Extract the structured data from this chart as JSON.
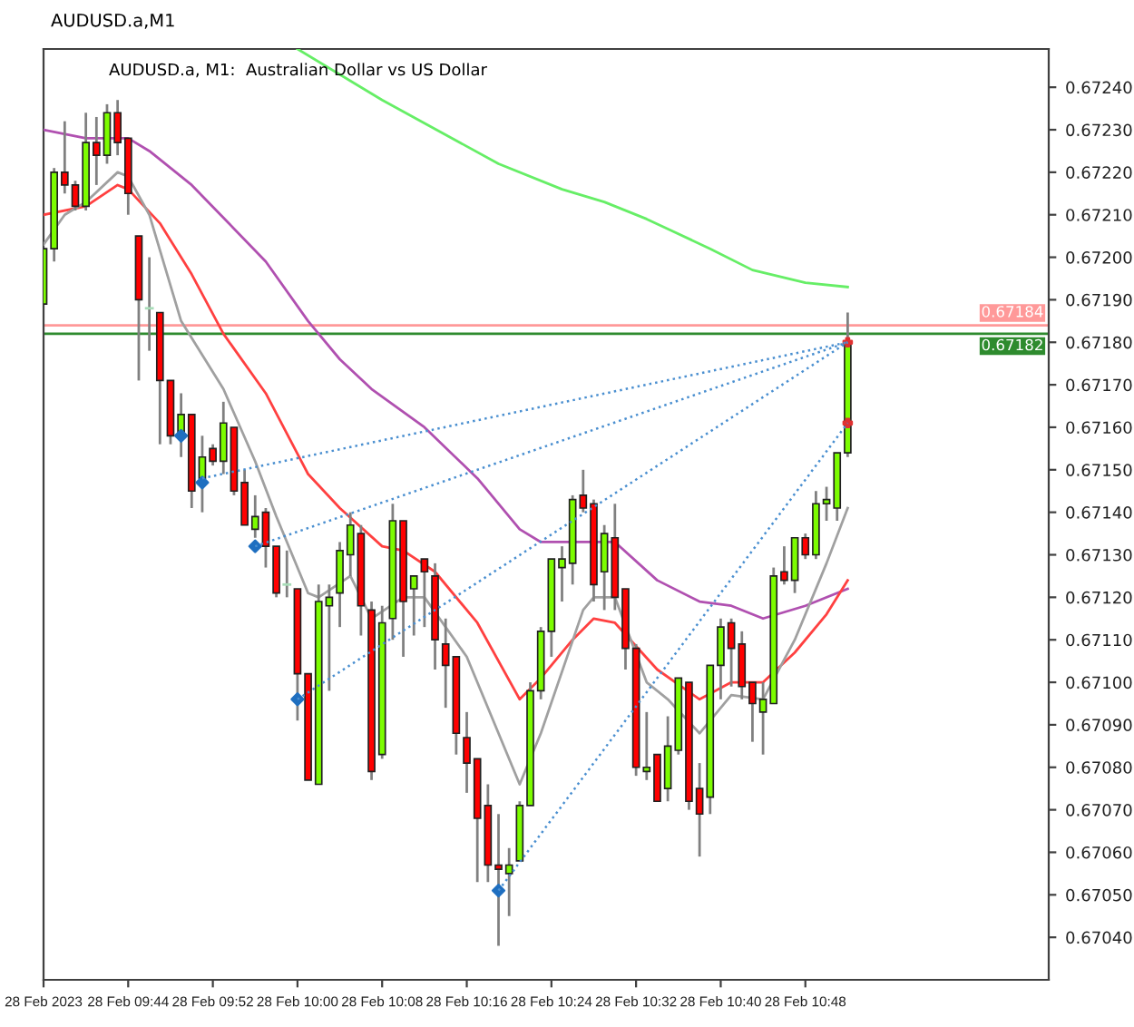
{
  "chart_data": {
    "type": "candlestick",
    "title": "AUDUSD.a,M1",
    "subtitle": "AUDUSD.a, M1:  Australian Dollar vs US Dollar",
    "x": [
      "2023-02-28T09:36",
      "2023-02-28T09:37",
      "2023-02-28T09:38",
      "2023-02-28T09:39",
      "2023-02-28T09:40",
      "2023-02-28T09:41",
      "2023-02-28T09:42",
      "2023-02-28T09:43",
      "2023-02-28T09:44",
      "2023-02-28T09:45",
      "2023-02-28T09:46",
      "2023-02-28T09:47",
      "2023-02-28T09:48",
      "2023-02-28T09:49",
      "2023-02-28T09:50",
      "2023-02-28T09:51",
      "2023-02-28T09:52",
      "2023-02-28T09:53",
      "2023-02-28T09:54",
      "2023-02-28T09:55",
      "2023-02-28T09:56",
      "2023-02-28T09:57",
      "2023-02-28T09:58",
      "2023-02-28T09:59",
      "2023-02-28T10:00",
      "2023-02-28T10:01",
      "2023-02-28T10:02",
      "2023-02-28T10:03",
      "2023-02-28T10:04",
      "2023-02-28T10:05",
      "2023-02-28T10:06",
      "2023-02-28T10:07",
      "2023-02-28T10:08",
      "2023-02-28T10:09",
      "2023-02-28T10:10",
      "2023-02-28T10:11",
      "2023-02-28T10:12",
      "2023-02-28T10:13",
      "2023-02-28T10:14",
      "2023-02-28T10:15",
      "2023-02-28T10:16",
      "2023-02-28T10:17",
      "2023-02-28T10:18",
      "2023-02-28T10:19",
      "2023-02-28T10:20",
      "2023-02-28T10:21",
      "2023-02-28T10:22",
      "2023-02-28T10:23",
      "2023-02-28T10:24",
      "2023-02-28T10:25",
      "2023-02-28T10:26",
      "2023-02-28T10:27",
      "2023-02-28T10:28",
      "2023-02-28T10:29",
      "2023-02-28T10:30",
      "2023-02-28T10:31",
      "2023-02-28T10:32",
      "2023-02-28T10:33",
      "2023-02-28T10:34",
      "2023-02-28T10:35",
      "2023-02-28T10:36",
      "2023-02-28T10:37",
      "2023-02-28T10:38",
      "2023-02-28T10:39",
      "2023-02-28T10:40",
      "2023-02-28T10:41",
      "2023-02-28T10:42",
      "2023-02-28T10:43",
      "2023-02-28T10:44",
      "2023-02-28T10:45",
      "2023-02-28T10:46",
      "2023-02-28T10:47",
      "2023-02-28T10:48",
      "2023-02-28T10:49",
      "2023-02-28T10:50",
      "2023-02-28T10:51",
      "2023-02-28T10:52"
    ],
    "ohlc": [
      [
        0.67189,
        0.67202,
        0.67189,
        0.67202
      ],
      [
        0.67202,
        0.67221,
        0.67199,
        0.6722
      ],
      [
        0.6722,
        0.67232,
        0.67215,
        0.67217
      ],
      [
        0.67217,
        0.67218,
        0.67211,
        0.67212
      ],
      [
        0.67212,
        0.67234,
        0.67211,
        0.67227
      ],
      [
        0.67227,
        0.67233,
        0.67217,
        0.67224
      ],
      [
        0.67224,
        0.67236,
        0.67222,
        0.67234
      ],
      [
        0.67234,
        0.67237,
        0.67224,
        0.67227
      ],
      [
        0.67228,
        0.67228,
        0.6721,
        0.67215
      ],
      [
        0.67205,
        0.67205,
        0.67171,
        0.6719
      ],
      [
        0.67188,
        0.672,
        0.67178,
        0.67188
      ],
      [
        0.67187,
        0.67187,
        0.67156,
        0.67171
      ],
      [
        0.67171,
        0.67171,
        0.67156,
        0.67158
      ],
      [
        0.67158,
        0.67168,
        0.67153,
        0.67163
      ],
      [
        0.67163,
        0.67163,
        0.67141,
        0.67145
      ],
      [
        0.67148,
        0.67158,
        0.6714,
        0.67153
      ],
      [
        0.67155,
        0.67156,
        0.67151,
        0.67152
      ],
      [
        0.67152,
        0.67166,
        0.67149,
        0.67161
      ],
      [
        0.6716,
        0.6716,
        0.67144,
        0.67145
      ],
      [
        0.67147,
        0.6715,
        0.67137,
        0.67137
      ],
      [
        0.67136,
        0.67144,
        0.67134,
        0.67139
      ],
      [
        0.6714,
        0.67141,
        0.67127,
        0.67132
      ],
      [
        0.67132,
        0.67132,
        0.6712,
        0.67121
      ],
      [
        0.67123,
        0.67131,
        0.6712,
        0.67123
      ],
      [
        0.67122,
        0.67122,
        0.67091,
        0.67102
      ],
      [
        0.67102,
        0.67102,
        0.67077,
        0.67077
      ],
      [
        0.67076,
        0.67123,
        0.67076,
        0.67119
      ],
      [
        0.67118,
        0.67123,
        0.67098,
        0.6712
      ],
      [
        0.67121,
        0.67133,
        0.67113,
        0.67131
      ],
      [
        0.6713,
        0.6714,
        0.67125,
        0.67137
      ],
      [
        0.67135,
        0.67137,
        0.67111,
        0.67118
      ],
      [
        0.67117,
        0.67119,
        0.67077,
        0.67079
      ],
      [
        0.67083,
        0.67118,
        0.67082,
        0.67114
      ],
      [
        0.67115,
        0.67142,
        0.6711,
        0.67138
      ],
      [
        0.67138,
        0.67138,
        0.67106,
        0.67119
      ],
      [
        0.67122,
        0.67125,
        0.67111,
        0.67125
      ],
      [
        0.67129,
        0.67129,
        0.67113,
        0.67126
      ],
      [
        0.67125,
        0.67128,
        0.67103,
        0.6711
      ],
      [
        0.67109,
        0.67115,
        0.67094,
        0.67104
      ],
      [
        0.67106,
        0.67106,
        0.67083,
        0.67088
      ],
      [
        0.67087,
        0.67093,
        0.67074,
        0.67081
      ],
      [
        0.67082,
        0.67082,
        0.67053,
        0.67068
      ],
      [
        0.67071,
        0.67076,
        0.67053,
        0.67057
      ],
      [
        0.67057,
        0.67069,
        0.67038,
        0.67056
      ],
      [
        0.67055,
        0.67061,
        0.67045,
        0.67057
      ],
      [
        0.67058,
        0.67072,
        0.67058,
        0.67071
      ],
      [
        0.67071,
        0.671,
        0.67071,
        0.67098
      ],
      [
        0.67098,
        0.67113,
        0.67096,
        0.67112
      ],
      [
        0.67112,
        0.67129,
        0.67106,
        0.67129
      ],
      [
        0.67127,
        0.67132,
        0.67119,
        0.67129
      ],
      [
        0.67128,
        0.67144,
        0.67123,
        0.67143
      ],
      [
        0.67144,
        0.6715,
        0.6714,
        0.67141
      ],
      [
        0.67142,
        0.67143,
        0.67119,
        0.67123
      ],
      [
        0.67126,
        0.67137,
        0.67117,
        0.67135
      ],
      [
        0.67134,
        0.67142,
        0.67117,
        0.6712
      ],
      [
        0.67122,
        0.67122,
        0.67103,
        0.67108
      ],
      [
        0.67108,
        0.67109,
        0.67078,
        0.6708
      ],
      [
        0.67079,
        0.67093,
        0.67077,
        0.6708
      ],
      [
        0.67083,
        0.67083,
        0.67072,
        0.67072
      ],
      [
        0.67075,
        0.67092,
        0.67072,
        0.67085
      ],
      [
        0.67084,
        0.67101,
        0.67083,
        0.67101
      ],
      [
        0.671,
        0.671,
        0.6707,
        0.67072
      ],
      [
        0.67075,
        0.67081,
        0.67059,
        0.67069
      ],
      [
        0.67073,
        0.67104,
        0.67069,
        0.67104
      ],
      [
        0.67104,
        0.67115,
        0.67096,
        0.67113
      ],
      [
        0.67114,
        0.67115,
        0.67099,
        0.67108
      ],
      [
        0.67109,
        0.67112,
        0.67096,
        0.67099
      ],
      [
        0.671,
        0.671,
        0.67086,
        0.67095
      ],
      [
        0.67093,
        0.671,
        0.67083,
        0.67096
      ],
      [
        0.67095,
        0.67127,
        0.67095,
        0.67125
      ],
      [
        0.67126,
        0.67132,
        0.67123,
        0.67124
      ],
      [
        0.67124,
        0.67134,
        0.67121,
        0.67134
      ],
      [
        0.67134,
        0.67135,
        0.67129,
        0.6713
      ],
      [
        0.6713,
        0.67145,
        0.67129,
        0.67142
      ],
      [
        0.67142,
        0.67146,
        0.67138,
        0.67143
      ],
      [
        0.67141,
        0.67154,
        0.67138,
        0.67154
      ],
      [
        0.67154,
        0.67187,
        0.67153,
        0.6718
      ]
    ],
    "colors": [
      "#7cfc00",
      "#7cfc00",
      "#ff0000",
      "#ff0000",
      "#7cfc00",
      "#ff0000",
      "#7cfc00",
      "#ff0000",
      "#ff0000",
      "#ff0000",
      "#a8dcb8",
      "#ff0000",
      "#ff0000",
      "#7cfc00",
      "#ff0000",
      "#7cfc00",
      "#ff0000",
      "#7cfc00",
      "#ff0000",
      "#ff0000",
      "#7cfc00",
      "#ff0000",
      "#ff0000",
      "#a8dcb8",
      "#ff0000",
      "#ff0000",
      "#7cfc00",
      "#7cfc00",
      "#7cfc00",
      "#7cfc00",
      "#ff0000",
      "#ff0000",
      "#7cfc00",
      "#7cfc00",
      "#ff0000",
      "#7cfc00",
      "#ff0000",
      "#ff0000",
      "#ff0000",
      "#ff0000",
      "#ff0000",
      "#ff0000",
      "#ff0000",
      "#ff0000",
      "#7cfc00",
      "#7cfc00",
      "#7cfc00",
      "#7cfc00",
      "#7cfc00",
      "#7cfc00",
      "#7cfc00",
      "#ff0000",
      "#ff0000",
      "#7cfc00",
      "#ff0000",
      "#ff0000",
      "#ff0000",
      "#7cfc00",
      "#ff0000",
      "#7cfc00",
      "#7cfc00",
      "#ff0000",
      "#ff0000",
      "#7cfc00",
      "#7cfc00",
      "#ff0000",
      "#ff0000",
      "#ff0000",
      "#7cfc00",
      "#7cfc00",
      "#ff0000",
      "#7cfc00",
      "#ff0000",
      "#7cfc00",
      "#7cfc00",
      "#7cfc00",
      "#7cfc00"
    ],
    "series": [
      {
        "type": "line",
        "color": "#66ee66",
        "x": [
          "2023-02-28T10:00",
          "2023-02-28T10:08",
          "2023-02-28T10:19",
          "2023-02-28T10:25",
          "2023-02-28T10:29",
          "2023-02-28T10:33",
          "2023-02-28T10:39",
          "2023-02-28T10:43",
          "2023-02-28T10:48",
          "2023-02-28T10:52"
        ],
        "values": [
          0.67249,
          0.67237,
          0.67222,
          0.67216,
          0.67213,
          0.67209,
          0.67202,
          0.67197,
          0.67194,
          0.67193
        ]
      },
      {
        "type": "line",
        "color": "#b050b0",
        "x": [
          "2023-02-28T09:36",
          "2023-02-28T09:40",
          "2023-02-28T09:44",
          "2023-02-28T09:46",
          "2023-02-28T09:50",
          "2023-02-28T09:57",
          "2023-02-28T10:01",
          "2023-02-28T10:04",
          "2023-02-28T10:07",
          "2023-02-28T10:12",
          "2023-02-28T10:17",
          "2023-02-28T10:18",
          "2023-02-28T10:21",
          "2023-02-28T10:23",
          "2023-02-28T10:28",
          "2023-02-28T10:30",
          "2023-02-28T10:34",
          "2023-02-28T10:38",
          "2023-02-28T10:41",
          "2023-02-28T10:44",
          "2023-02-28T10:48",
          "2023-02-28T10:52"
        ],
        "values": [
          0.6723,
          0.67228,
          0.67228,
          0.67225,
          0.67217,
          0.67199,
          0.67185,
          0.67176,
          0.67169,
          0.6716,
          0.67148,
          0.67145,
          0.67136,
          0.67133,
          0.67133,
          0.67133,
          0.67124,
          0.67119,
          0.67118,
          0.67115,
          0.67118,
          0.67122
        ]
      },
      {
        "type": "line",
        "color": "#ff4040",
        "x": [
          "2023-02-28T09:36",
          "2023-02-28T09:40",
          "2023-02-28T09:43",
          "2023-02-28T09:44",
          "2023-02-28T09:47",
          "2023-02-28T09:50",
          "2023-02-28T09:53",
          "2023-02-28T09:57",
          "2023-02-28T10:01",
          "2023-02-28T10:04",
          "2023-02-28T10:08",
          "2023-02-28T10:10",
          "2023-02-28T10:13",
          "2023-02-28T10:17",
          "2023-02-28T10:21",
          "2023-02-28T10:23",
          "2023-02-28T10:26",
          "2023-02-28T10:28",
          "2023-02-28T10:30",
          "2023-02-28T10:34",
          "2023-02-28T10:38",
          "2023-02-28T10:41",
          "2023-02-28T10:44",
          "2023-02-28T10:47",
          "2023-02-28T10:50",
          "2023-02-28T10:52"
        ],
        "values": [
          0.6721,
          0.67212,
          0.67217,
          0.67216,
          0.67208,
          0.67196,
          0.67182,
          0.67168,
          0.67149,
          0.67141,
          0.67132,
          0.67131,
          0.67126,
          0.67114,
          0.67096,
          0.67101,
          0.6711,
          0.67115,
          0.67114,
          0.67103,
          0.67096,
          0.671,
          0.671,
          0.67107,
          0.67116,
          0.67124
        ]
      },
      {
        "type": "line",
        "color": "#a0a0a0",
        "x": [
          "2023-02-28T09:36",
          "2023-02-28T09:38",
          "2023-02-28T09:40",
          "2023-02-28T09:43",
          "2023-02-28T09:44",
          "2023-02-28T09:46",
          "2023-02-28T09:49",
          "2023-02-28T09:53",
          "2023-02-28T09:56",
          "2023-02-28T09:58",
          "2023-02-28T10:01",
          "2023-02-28T10:02",
          "2023-02-28T10:05",
          "2023-02-28T10:07",
          "2023-02-28T10:10",
          "2023-02-28T10:12",
          "2023-02-28T10:16",
          "2023-02-28T10:21",
          "2023-02-28T10:23",
          "2023-02-28T10:27",
          "2023-02-28T10:28",
          "2023-02-28T10:30",
          "2023-02-28T10:33",
          "2023-02-28T10:35",
          "2023-02-28T10:38",
          "2023-02-28T10:41",
          "2023-02-28T10:44",
          "2023-02-28T10:47",
          "2023-02-28T10:50",
          "2023-02-28T10:52"
        ],
        "values": [
          0.67203,
          0.6721,
          0.67213,
          0.6722,
          0.67219,
          0.6721,
          0.67185,
          0.67169,
          0.67152,
          0.67139,
          0.67121,
          0.6712,
          0.67125,
          0.67115,
          0.6712,
          0.6712,
          0.67106,
          0.67076,
          0.67088,
          0.67117,
          0.6712,
          0.6712,
          0.671,
          0.67096,
          0.67088,
          0.67097,
          0.67096,
          0.6711,
          0.67128,
          0.67141
        ]
      },
      {
        "type": "line",
        "color": "#4a8fd0",
        "line_style": "dotted",
        "x": [
          "2023-02-28T09:51",
          "2023-02-28T10:52"
        ],
        "values": [
          0.67148,
          0.6718
        ]
      },
      {
        "type": "line",
        "color": "#4a8fd0",
        "line_style": "dotted",
        "x": [
          "2023-02-28T09:56",
          "2023-02-28T10:52"
        ],
        "values": [
          0.67132,
          0.6718
        ]
      },
      {
        "type": "line",
        "color": "#4a8fd0",
        "line_style": "dotted",
        "x": [
          "2023-02-28T10:00",
          "2023-02-28T10:52"
        ],
        "values": [
          0.67096,
          0.6718
        ]
      },
      {
        "type": "line",
        "color": "#4a8fd0",
        "line_style": "dotted",
        "x": [
          "2023-02-28T10:19",
          "2023-02-28T10:52"
        ],
        "values": [
          0.67051,
          0.67161
        ]
      },
      {
        "type": "scatter",
        "color": "#1f6fc0",
        "marker": "diamond",
        "x": [
          "2023-02-28T09:49",
          "2023-02-28T09:51",
          "2023-02-28T09:56",
          "2023-02-28T10:00",
          "2023-02-28T10:19"
        ],
        "values": [
          0.67158,
          0.67147,
          0.67132,
          0.67096,
          0.67051
        ]
      },
      {
        "type": "scatter",
        "color": "#e03030",
        "marker": "cross",
        "x": [
          "2023-02-28T10:52",
          "2023-02-28T10:52"
        ],
        "values": [
          0.6718,
          0.67161
        ]
      }
    ],
    "ref_lines": [
      {
        "axis": "y",
        "value": 0.67184,
        "label": "0.67184",
        "color": "#ff9999"
      },
      {
        "axis": "y",
        "value": 0.67182,
        "label": "0.67182",
        "color": "#2e8b2e"
      }
    ],
    "xlim": [
      "2023-02-28T09:36",
      "2023-02-28T11:11"
    ],
    "xticks": [
      {
        "value": "2023-02-28T09:36",
        "label": "28 Feb 2023"
      },
      {
        "value": "2023-02-28T09:44",
        "label": "28 Feb 09:44"
      },
      {
        "value": "2023-02-28T09:52",
        "label": "28 Feb 09:52"
      },
      {
        "value": "2023-02-28T10:00",
        "label": "28 Feb 10:00"
      },
      {
        "value": "2023-02-28T10:08",
        "label": "28 Feb 10:08"
      },
      {
        "value": "2023-02-28T10:16",
        "label": "28 Feb 10:16"
      },
      {
        "value": "2023-02-28T10:24",
        "label": "28 Feb 10:24"
      },
      {
        "value": "2023-02-28T10:32",
        "label": "28 Feb 10:32"
      },
      {
        "value": "2023-02-28T10:40",
        "label": "28 Feb 10:40"
      },
      {
        "value": "2023-02-28T10:48",
        "label": "28 Feb 10:48"
      }
    ],
    "ylim": [
      0.6703,
      0.67249
    ],
    "yticks": [
      {
        "value": 0.6704,
        "label": "0.67040"
      },
      {
        "value": 0.6705,
        "label": "0.67050"
      },
      {
        "value": 0.6706,
        "label": "0.67060"
      },
      {
        "value": 0.6707,
        "label": "0.67070"
      },
      {
        "value": 0.6708,
        "label": "0.67080"
      },
      {
        "value": 0.6709,
        "label": "0.67090"
      },
      {
        "value": 0.671,
        "label": "0.67100"
      },
      {
        "value": 0.6711,
        "label": "0.67110"
      },
      {
        "value": 0.6712,
        "label": "0.67120"
      },
      {
        "value": 0.6713,
        "label": "0.67130"
      },
      {
        "value": 0.6714,
        "label": "0.67140"
      },
      {
        "value": 0.6715,
        "label": "0.67150"
      },
      {
        "value": 0.6716,
        "label": "0.67160"
      },
      {
        "value": 0.6717,
        "label": "0.67170"
      },
      {
        "value": 0.6718,
        "label": "0.67180"
      },
      {
        "value": 0.6719,
        "label": "0.67190"
      },
      {
        "value": 0.672,
        "label": "0.67200"
      },
      {
        "value": 0.6721,
        "label": "0.67210"
      },
      {
        "value": 0.6722,
        "label": "0.67220"
      },
      {
        "value": 0.6723,
        "label": "0.67230"
      },
      {
        "value": 0.6724,
        "label": "0.67240"
      }
    ],
    "grid": false
  }
}
